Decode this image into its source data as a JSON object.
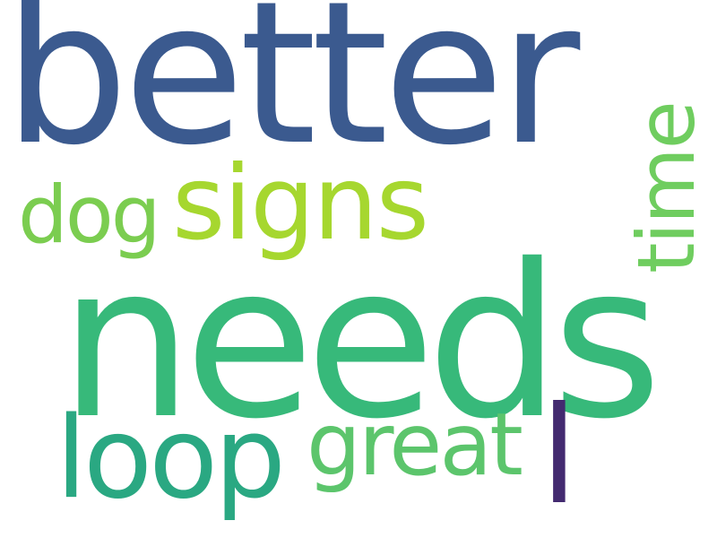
{
  "words": [
    {
      "text": "better",
      "color": "#3b5a8f"
    },
    {
      "text": "signs",
      "color": "#a6d72f"
    },
    {
      "text": "dog",
      "color": "#7bcd50"
    },
    {
      "text": "time",
      "color": "#6fcd5f"
    },
    {
      "text": "needs",
      "color": "#37b97a"
    },
    {
      "text": "loop",
      "color": "#2aa882"
    },
    {
      "text": "great",
      "color": "#5cc56c"
    },
    {
      "text": "l",
      "color": "#432a70"
    }
  ]
}
